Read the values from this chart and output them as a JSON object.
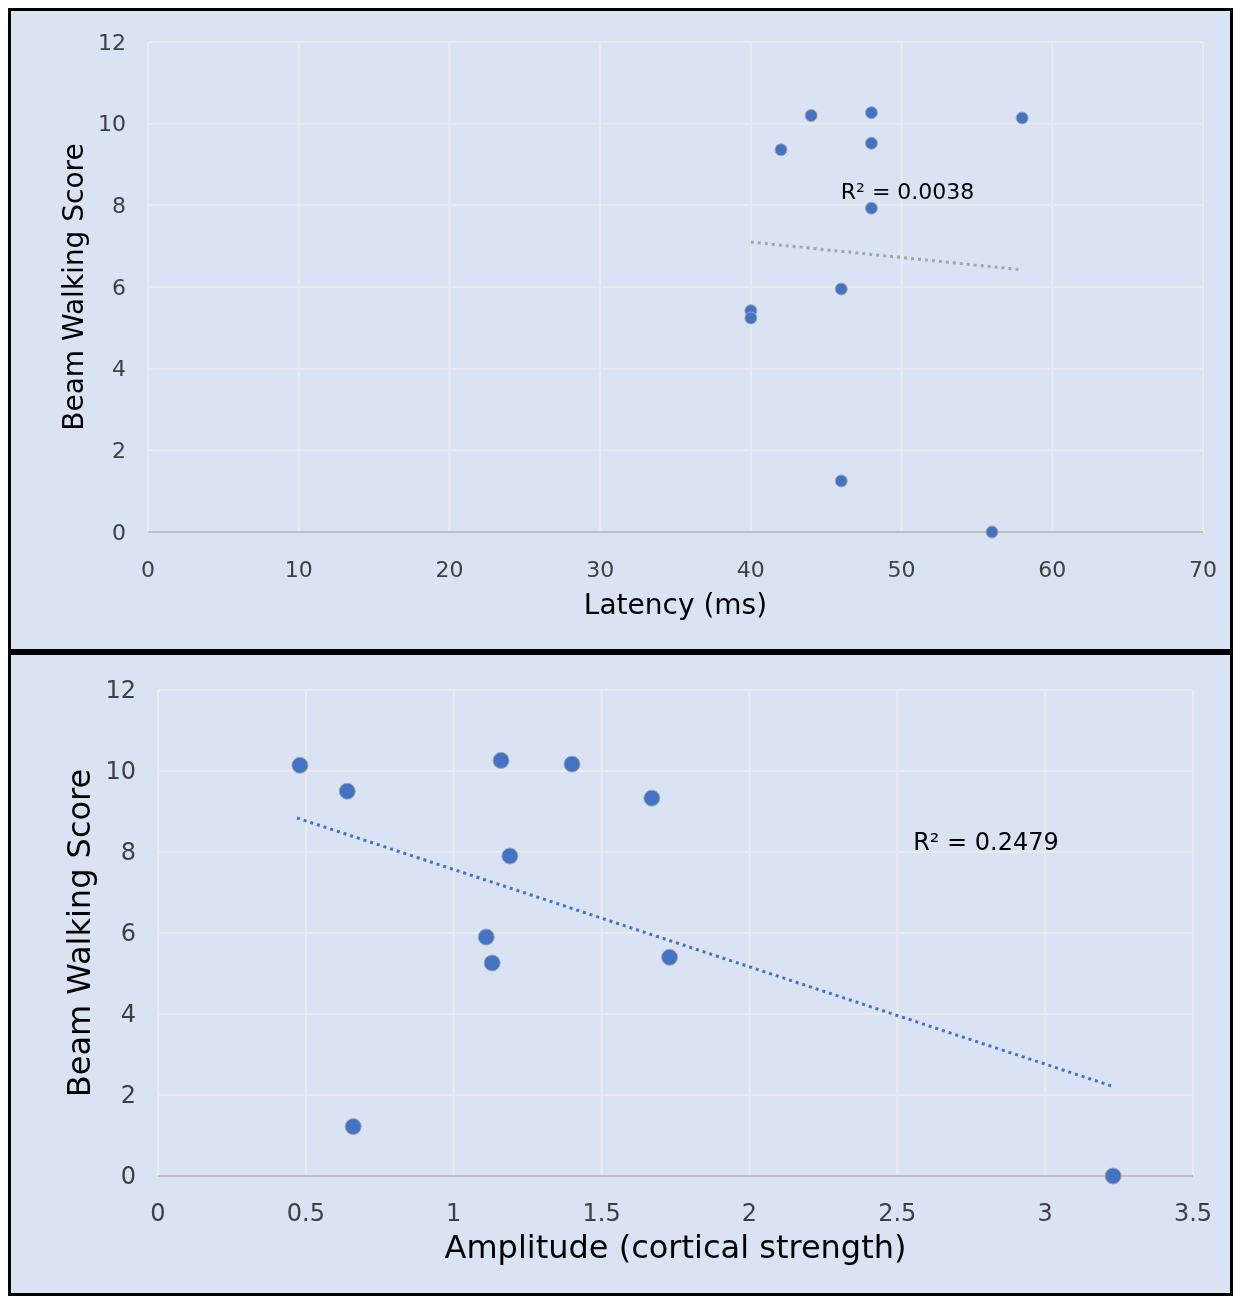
{
  "chart_data": [
    {
      "type": "scatter",
      "xlabel": "Latency (ms)",
      "ylabel": "Beam Walking Score",
      "xlim": [
        0,
        70
      ],
      "xticks": [
        0,
        10,
        20,
        30,
        40,
        50,
        60,
        70
      ],
      "ylim": [
        0,
        12
      ],
      "yticks": [
        0,
        2,
        4,
        6,
        8,
        10,
        12
      ],
      "grid": true,
      "marker": "circle",
      "annotations": [
        "R² = 0.0038"
      ],
      "series": [
        {
          "type": "scatter",
          "color": "#4472c4",
          "x": [
            44,
            48,
            58,
            42,
            48,
            48,
            40,
            40,
            46,
            46,
            56
          ],
          "values": [
            10.2,
            10.27,
            10.14,
            9.36,
            9.52,
            7.93,
            5.42,
            5.24,
            5.95,
            1.25,
            0
          ]
        },
        {
          "type": "line",
          "color": "#a6a6a6",
          "line_style": "dotted",
          "marker": "none",
          "x": [
            40,
            58
          ],
          "values": [
            7.1,
            6.42
          ]
        }
      ]
    },
    {
      "type": "scatter",
      "xlabel": "Amplitude (cortical strength)",
      "ylabel": "Beam Walking Score",
      "xlim": [
        0,
        3.5
      ],
      "xticks": [
        0,
        0.5,
        1,
        1.5,
        2,
        2.5,
        3,
        3.5
      ],
      "ylim": [
        0,
        12
      ],
      "yticks": [
        0,
        2,
        4,
        6,
        8,
        10,
        12
      ],
      "grid": true,
      "marker": "circle",
      "annotations": [
        "R² = 0.2479"
      ],
      "series": [
        {
          "type": "scatter",
          "color": "#4472c4",
          "x": [
            0.48,
            0.64,
            1.16,
            1.4,
            1.67,
            1.19,
            1.11,
            1.13,
            1.73,
            0.66,
            3.23
          ],
          "values": [
            10.14,
            9.5,
            10.26,
            10.17,
            9.33,
            7.9,
            5.9,
            5.26,
            5.4,
            1.22,
            0
          ]
        },
        {
          "type": "line",
          "color": "#4472c4",
          "line_style": "dotted",
          "marker": "none",
          "x": [
            0.47,
            3.23
          ],
          "values": [
            8.84,
            2.21
          ]
        }
      ]
    }
  ]
}
